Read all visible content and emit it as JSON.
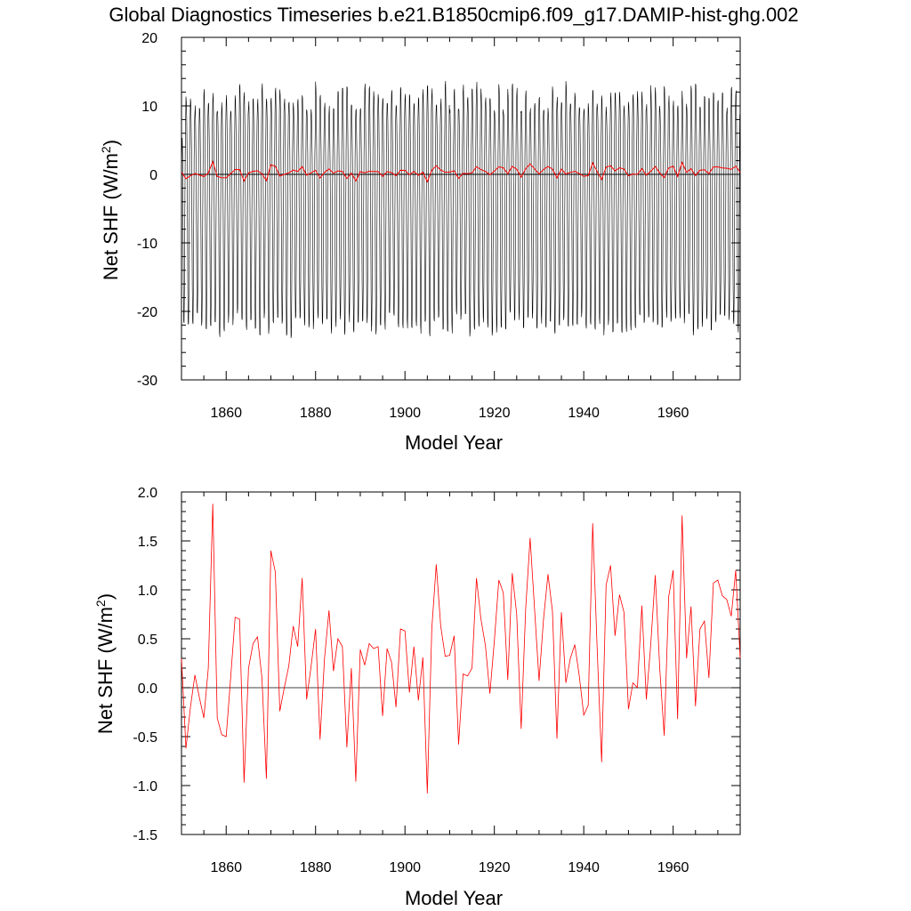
{
  "title": "Global Diagnostics Timeseries b.e21.B1850cmip6.f09_g17.DAMIP-hist-ghg.002",
  "colors": {
    "monthly": "#000000",
    "annual": "#ff0000",
    "zero": "#000000"
  },
  "chart_data": [
    {
      "type": "line",
      "xlabel": "Model Year",
      "ylabel_main": "Net SHF (W/m",
      "ylabel_sup": "2",
      "ylabel_end": ")",
      "xlim": [
        1850,
        1975
      ],
      "ylim": [
        -30,
        20
      ],
      "xticks": [
        1860,
        1880,
        1900,
        1920,
        1940,
        1960
      ],
      "yticks": [
        -30,
        -20,
        -10,
        0,
        10,
        20
      ],
      "ytick_labels": [
        "-30",
        "-20",
        "-10",
        "0",
        "10",
        "20"
      ],
      "zero_line": 0,
      "monthly_cycle": {
        "min_typical": -22.5,
        "max_typical": 11.5,
        "start": 1850,
        "end": 1975
      },
      "annual_series": "see bottom panel values"
    },
    {
      "type": "line",
      "xlabel": "Model Year",
      "ylabel_main": "Net SHF (W/m",
      "ylabel_sup": "2",
      "ylabel_end": ")",
      "xlim": [
        1850,
        1975
      ],
      "ylim": [
        -1.5,
        2.0
      ],
      "xticks": [
        1860,
        1880,
        1900,
        1920,
        1940,
        1960
      ],
      "yticks": [
        -1.5,
        -1.0,
        -0.5,
        0.0,
        0.5,
        1.0,
        1.5,
        2.0
      ],
      "ytick_labels": [
        "-1.5",
        "-1.0",
        "-0.5",
        "0.0",
        "0.5",
        "1.0",
        "1.5",
        "2.0"
      ],
      "zero_line": 0,
      "x_start": 1850,
      "values": [
        0.3,
        -0.62,
        -0.2,
        0.13,
        -0.1,
        -0.31,
        0.2,
        1.88,
        -0.31,
        -0.48,
        -0.5,
        0.1,
        0.72,
        0.7,
        -0.97,
        0.2,
        0.45,
        0.52,
        0.1,
        -0.93,
        1.4,
        1.18,
        -0.24,
        0.0,
        0.22,
        0.63,
        0.42,
        1.12,
        -0.12,
        0.22,
        0.6,
        -0.53,
        0.3,
        0.79,
        0.17,
        0.5,
        0.42,
        -0.61,
        0.2,
        -0.96,
        0.39,
        0.23,
        0.45,
        0.4,
        0.42,
        -0.29,
        0.4,
        0.26,
        -0.2,
        0.6,
        0.58,
        -0.05,
        0.42,
        -0.13,
        0.31,
        -1.08,
        0.6,
        1.26,
        0.63,
        0.32,
        0.33,
        0.53,
        -0.58,
        0.14,
        0.12,
        0.2,
        1.12,
        0.7,
        0.43,
        -0.06,
        0.48,
        1.1,
        0.97,
        0.08,
        1.17,
        0.75,
        -0.42,
        0.8,
        1.53,
        0.8,
        0.07,
        0.7,
        1.16,
        0.78,
        -0.52,
        0.77,
        0.05,
        0.3,
        0.44,
        0.12,
        -0.28,
        -0.18,
        1.68,
        0.4,
        -0.76,
        1.05,
        1.25,
        0.53,
        0.95,
        0.77,
        -0.22,
        0.05,
        0.0,
        0.84,
        -0.12,
        0.45,
        1.15,
        0.2,
        -0.49,
        0.93,
        1.2,
        -0.32,
        1.76,
        0.3,
        0.83,
        -0.19,
        0.6,
        0.68,
        0.1,
        1.07,
        1.1,
        0.94,
        0.9,
        0.73,
        1.2,
        0.3
      ]
    }
  ]
}
